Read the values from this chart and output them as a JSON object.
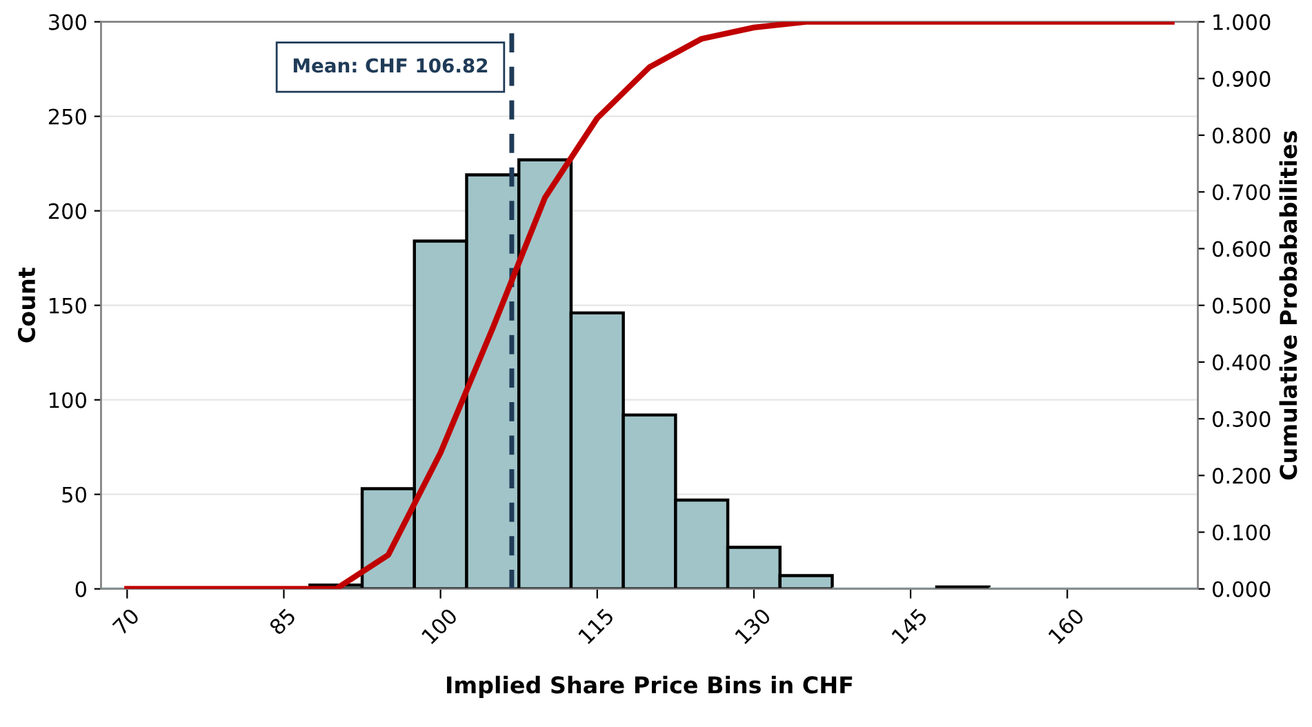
{
  "chart_data": {
    "type": "histogram",
    "xlabel": "Implied Share Price Bins in CHF",
    "ylabel": "Count",
    "y2label": "Cumulative Probababilities",
    "bins": [
      67.5,
      72.5,
      77.5,
      82.5,
      87.5,
      92.5,
      97.5,
      102.5,
      107.5,
      112.5,
      117.5,
      122.5,
      127.5,
      132.5,
      137.5,
      142.5,
      147.5,
      152.5,
      157.5,
      162.5,
      167.5,
      172.5
    ],
    "values": [
      0,
      0,
      0,
      0,
      2,
      53,
      184,
      219,
      227,
      146,
      92,
      47,
      22,
      7,
      0,
      0,
      1,
      0,
      0,
      0,
      0
    ],
    "color": "#a0c4c8",
    "series": [
      {
        "type": "line",
        "axis": "y2",
        "color": "#c00000",
        "x": [
          70,
          75,
          80,
          85,
          90,
          95,
          100,
          105,
          110,
          115,
          120,
          125,
          130,
          135,
          140,
          145,
          150,
          155,
          160,
          165,
          170
        ],
        "values": [
          0,
          0,
          0,
          0,
          0.0,
          0.06,
          0.24,
          0.46,
          0.69,
          0.83,
          0.92,
          0.97,
          0.99,
          1.0,
          1.0,
          1.0,
          1.0,
          1.0,
          1.0,
          1.0,
          1.0
        ]
      }
    ],
    "xlim": [
      67.5,
      172.5
    ],
    "xticks": [
      70,
      85,
      100,
      115,
      130,
      145,
      160
    ],
    "ylim": [
      0,
      300
    ],
    "yticks": [
      0,
      50,
      100,
      150,
      200,
      250,
      300
    ],
    "y2lim": [
      0,
      1
    ],
    "y2ticks": [
      {
        "value": 0,
        "label": "0.000"
      },
      {
        "value": 0.1,
        "label": "0.100"
      },
      {
        "value": 0.2,
        "label": "0.200"
      },
      {
        "value": 0.3,
        "label": "0.300"
      },
      {
        "value": 0.4,
        "label": "0.400"
      },
      {
        "value": 0.5,
        "label": "0.500"
      },
      {
        "value": 0.6,
        "label": "0.600"
      },
      {
        "value": 0.7,
        "label": "0.700"
      },
      {
        "value": 0.8,
        "label": "0.800"
      },
      {
        "value": 0.9,
        "label": "0.900"
      },
      {
        "value": 1,
        "label": "1.000"
      }
    ],
    "ref_lines": [
      {
        "axis": "x",
        "value": 106.82,
        "label": "Mean: CHF 106.82",
        "color": "#1f3b57",
        "line_style": "dashed"
      }
    ],
    "grid": "y"
  }
}
